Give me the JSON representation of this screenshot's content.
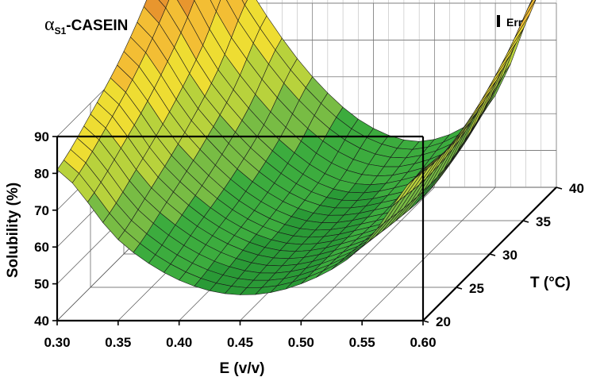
{
  "chart_data": {
    "type": "surface",
    "title": "α",
    "title_subscript": "S1",
    "title_suffix": "-CASEIN",
    "legend": {
      "label": "Err",
      "placement": "top-right"
    },
    "xlabel": "E (v/v)",
    "ylabel": "T (°C)",
    "zlabel": "Solubility (%)",
    "xlim": [
      0.3,
      0.6
    ],
    "ylim": [
      20,
      40
    ],
    "zlim": [
      40,
      90
    ],
    "x_ticks": [
      "0.30",
      "0.35",
      "0.40",
      "0.45",
      "0.50",
      "0.55",
      "0.60"
    ],
    "y_ticks": [
      "20",
      "25",
      "30",
      "35",
      "40"
    ],
    "z_ticks": [
      "40",
      "50",
      "60",
      "70",
      "80",
      "90"
    ],
    "grid": true,
    "color_bands": [
      {
        "min": 40,
        "max": 50,
        "color": "#2a9a36"
      },
      {
        "min": 50,
        "max": 60,
        "color": "#3cac3e"
      },
      {
        "min": 60,
        "max": 70,
        "color": "#78bc44"
      },
      {
        "min": 70,
        "max": 80,
        "color": "#b8d23c"
      },
      {
        "min": 80,
        "max": 90,
        "color": "#eedd32"
      },
      {
        "min": 90,
        "max": 100,
        "color": "#f3be34"
      },
      {
        "min": 100,
        "max": 110,
        "color": "#e8962e"
      },
      {
        "min": 110,
        "max": 130,
        "color": "#d07a2a"
      }
    ],
    "surface_values": {
      "T": [
        20,
        25,
        30,
        35,
        40
      ],
      "E": [
        0.3,
        0.35,
        0.4,
        0.45,
        0.5,
        0.55,
        0.6
      ],
      "rows_by_T": [
        [
          81,
          62,
          51,
          47,
          50,
          60,
          81
        ],
        [
          87,
          67,
          54,
          48,
          50,
          58,
          80
        ],
        [
          95,
          73,
          57,
          49,
          50,
          57,
          84
        ],
        [
          107,
          81,
          62,
          51,
          51,
          60,
          92
        ],
        [
          123,
          93,
          70,
          56,
          53,
          65,
          103
        ]
      ]
    }
  }
}
